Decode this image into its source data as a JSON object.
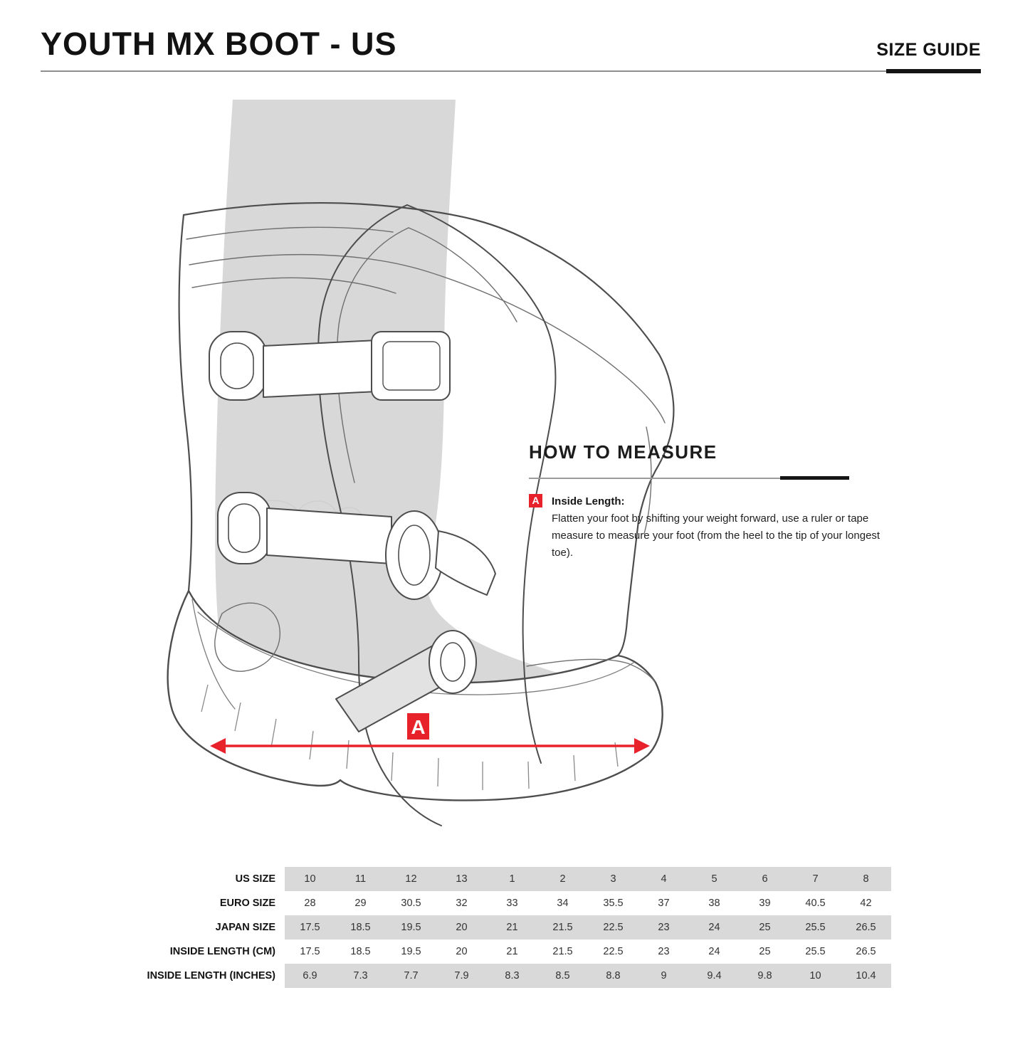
{
  "header": {
    "title": "YOUTH MX BOOT - US",
    "size_guide_label": "SIZE GUIDE"
  },
  "measure": {
    "heading": "HOW TO MEASURE",
    "marker": "A",
    "label": "Inside Length:",
    "description": "Flatten your foot by shifting your weight forward, use a ruler or tape measure to measure your foot (from the heel to the tip of your longest toe)."
  },
  "illustration": {
    "marker_label": "A"
  },
  "colors": {
    "accent_red": "#e8222a",
    "table_stripe": "#d9d9d9",
    "outline_gray": "#4d4d4d",
    "leg_gray": "#d8d8d8"
  },
  "table": {
    "rows": [
      {
        "label": "US SIZE",
        "striped": true,
        "values": [
          "10",
          "11",
          "12",
          "13",
          "1",
          "2",
          "3",
          "4",
          "5",
          "6",
          "7",
          "8"
        ]
      },
      {
        "label": "EURO SIZE",
        "striped": false,
        "values": [
          "28",
          "29",
          "30.5",
          "32",
          "33",
          "34",
          "35.5",
          "37",
          "38",
          "39",
          "40.5",
          "42"
        ]
      },
      {
        "label": "JAPAN SIZE",
        "striped": true,
        "values": [
          "17.5",
          "18.5",
          "19.5",
          "20",
          "21",
          "21.5",
          "22.5",
          "23",
          "24",
          "25",
          "25.5",
          "26.5"
        ]
      },
      {
        "label": "INSIDE LENGTH (CM)",
        "striped": false,
        "values": [
          "17.5",
          "18.5",
          "19.5",
          "20",
          "21",
          "21.5",
          "22.5",
          "23",
          "24",
          "25",
          "25.5",
          "26.5"
        ]
      },
      {
        "label": "INSIDE LENGTH (INCHES)",
        "striped": true,
        "values": [
          "6.9",
          "7.3",
          "7.7",
          "7.9",
          "8.3",
          "8.5",
          "8.8",
          "9",
          "9.4",
          "9.8",
          "10",
          "10.4"
        ]
      }
    ]
  }
}
